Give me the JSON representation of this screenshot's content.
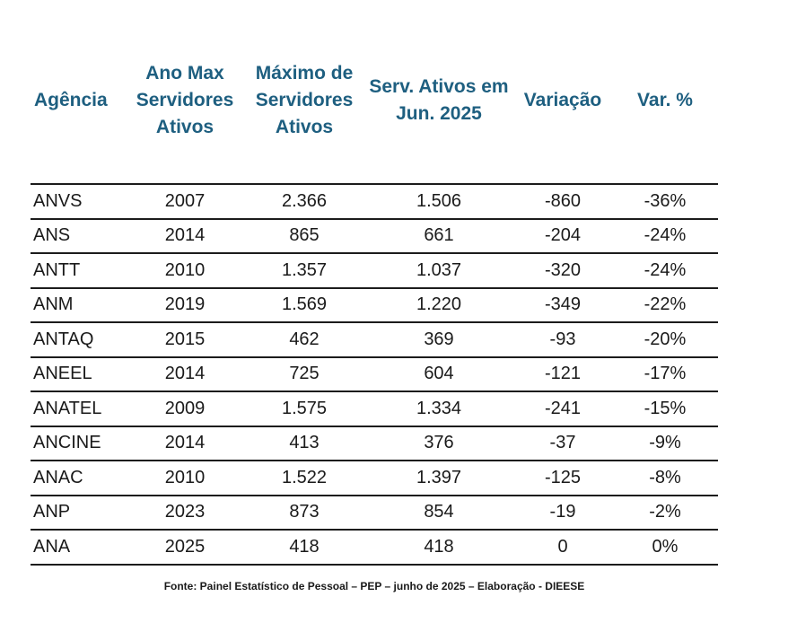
{
  "colors": {
    "header_text": "#1e5f80",
    "body_text": "#1a1a1a",
    "row_line": "#1c1c1c",
    "background": "#ffffff"
  },
  "chart_data": {
    "type": "table",
    "columns": [
      "Agência",
      "Ano Max Servidores Ativos",
      "Máximo de Servidores Ativos",
      "Serv. Ativos em Jun. 2025",
      "Variação",
      "Var. %"
    ],
    "rows": [
      [
        "ANVS",
        "2007",
        "2.366",
        "1.506",
        "-860",
        "-36%"
      ],
      [
        "ANS",
        "2014",
        "865",
        "661",
        "-204",
        "-24%"
      ],
      [
        "ANTT",
        "2010",
        "1.357",
        "1.037",
        "-320",
        "-24%"
      ],
      [
        "ANM",
        "2019",
        "1.569",
        "1.220",
        "-349",
        "-22%"
      ],
      [
        "ANTAQ",
        "2015",
        "462",
        "369",
        "-93",
        "-20%"
      ],
      [
        "ANEEL",
        "2014",
        "725",
        "604",
        "-121",
        "-17%"
      ],
      [
        "ANATEL",
        "2009",
        "1.575",
        "1.334",
        "-241",
        "-15%"
      ],
      [
        "ANCINE",
        "2014",
        "413",
        "376",
        "-37",
        "-9%"
      ],
      [
        "ANAC",
        "2010",
        "1.522",
        "1.397",
        "-125",
        "-8%"
      ],
      [
        "ANP",
        "2023",
        "873",
        "854",
        "-19",
        "-2%"
      ],
      [
        "ANA",
        "2025",
        "418",
        "418",
        "0",
        "0%"
      ]
    ],
    "layout_hints": {
      "grid": "horizontal-lines-only",
      "header_lines": false,
      "value_alignment": "center",
      "first_column_alignment": "left"
    }
  },
  "footer": {
    "source": "Fonte: Painel Estatístico de Pessoal – PEP – junho de 2025 – Elaboração - DIEESE"
  }
}
